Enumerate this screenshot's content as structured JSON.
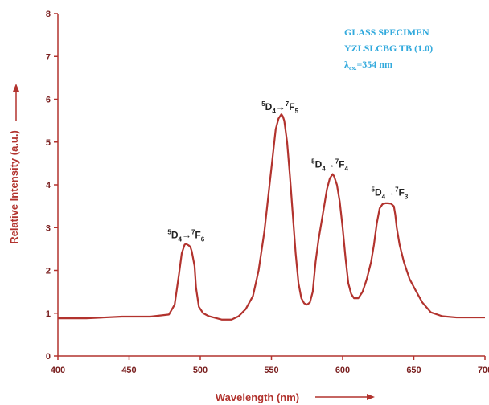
{
  "chart_data": {
    "type": "line",
    "xlabel": "Wavelength (nm)",
    "ylabel": "Relative Intensity (a.u.)",
    "xlim": [
      400,
      700
    ],
    "ylim": [
      0,
      8
    ],
    "x_ticks": [
      "400",
      "450",
      "500",
      "550",
      "600",
      "650",
      "700"
    ],
    "y_ticks": [
      "0",
      "1",
      "2",
      "3",
      "4",
      "5",
      "6",
      "7",
      "8"
    ],
    "grid": false,
    "specimen_label": {
      "line1": "GLASS SPECIMEN",
      "line2": "YZLSLCBG TB (1.0)",
      "line3_prefix": "λ",
      "line3_sub": "ex.",
      "line3_value": "=354 nm"
    },
    "annotations": [
      {
        "id": "f6",
        "upper_left": "5",
        "base1": "D",
        "sub1": "4",
        "arrow": "→",
        "upper_right": "7",
        "base2": "F",
        "sub2": "6",
        "x": 490,
        "y": 2.75
      },
      {
        "id": "f5",
        "upper_left": "5",
        "base1": "D",
        "sub1": "4",
        "arrow": "→",
        "upper_right": "7",
        "base2": "F",
        "sub2": "5",
        "x": 556,
        "y": 5.75
      },
      {
        "id": "f4",
        "upper_left": "5",
        "base1": "D",
        "sub1": "4",
        "arrow": "→",
        "upper_right": "7",
        "base2": "F",
        "sub2": "4",
        "x": 591,
        "y": 4.4
      },
      {
        "id": "f3",
        "upper_left": "5",
        "base1": "D",
        "sub1": "4",
        "arrow": "→",
        "upper_right": "7",
        "base2": "F",
        "sub2": "3",
        "x": 633,
        "y": 3.75
      }
    ],
    "series": [
      {
        "color": "#b2332e",
        "x": [
          400,
          420,
          445,
          465,
          478,
          482,
          485,
          487,
          489,
          490,
          491,
          492,
          493,
          494,
          496,
          497,
          499,
          502,
          506,
          515,
          522,
          527,
          532,
          537,
          541,
          545,
          548,
          551,
          553,
          555,
          557,
          558,
          559,
          561,
          563,
          565,
          567,
          569,
          571,
          573,
          575,
          577,
          579,
          581,
          583,
          585,
          587,
          589,
          591,
          593,
          594,
          596,
          598,
          600,
          602,
          604,
          606,
          608,
          611,
          614,
          617,
          620,
          622,
          624,
          626,
          628,
          630,
          632,
          634,
          636,
          637,
          638,
          640,
          643,
          647,
          651,
          656,
          662,
          670,
          680,
          700
        ],
        "y": [
          0.88,
          0.88,
          0.92,
          0.92,
          0.97,
          1.2,
          1.9,
          2.4,
          2.6,
          2.62,
          2.6,
          2.58,
          2.55,
          2.45,
          2.1,
          1.6,
          1.15,
          1.0,
          0.93,
          0.85,
          0.85,
          0.93,
          1.1,
          1.4,
          2.0,
          2.9,
          3.8,
          4.7,
          5.3,
          5.55,
          5.65,
          5.6,
          5.5,
          5.0,
          4.2,
          3.3,
          2.4,
          1.7,
          1.35,
          1.23,
          1.2,
          1.25,
          1.5,
          2.2,
          2.7,
          3.1,
          3.5,
          3.9,
          4.15,
          4.25,
          4.2,
          4.0,
          3.6,
          3.0,
          2.3,
          1.7,
          1.45,
          1.35,
          1.35,
          1.5,
          1.8,
          2.2,
          2.6,
          3.1,
          3.45,
          3.55,
          3.57,
          3.57,
          3.56,
          3.5,
          3.3,
          3.0,
          2.6,
          2.2,
          1.8,
          1.55,
          1.25,
          1.02,
          0.93,
          0.9,
          0.9
        ]
      }
    ]
  }
}
